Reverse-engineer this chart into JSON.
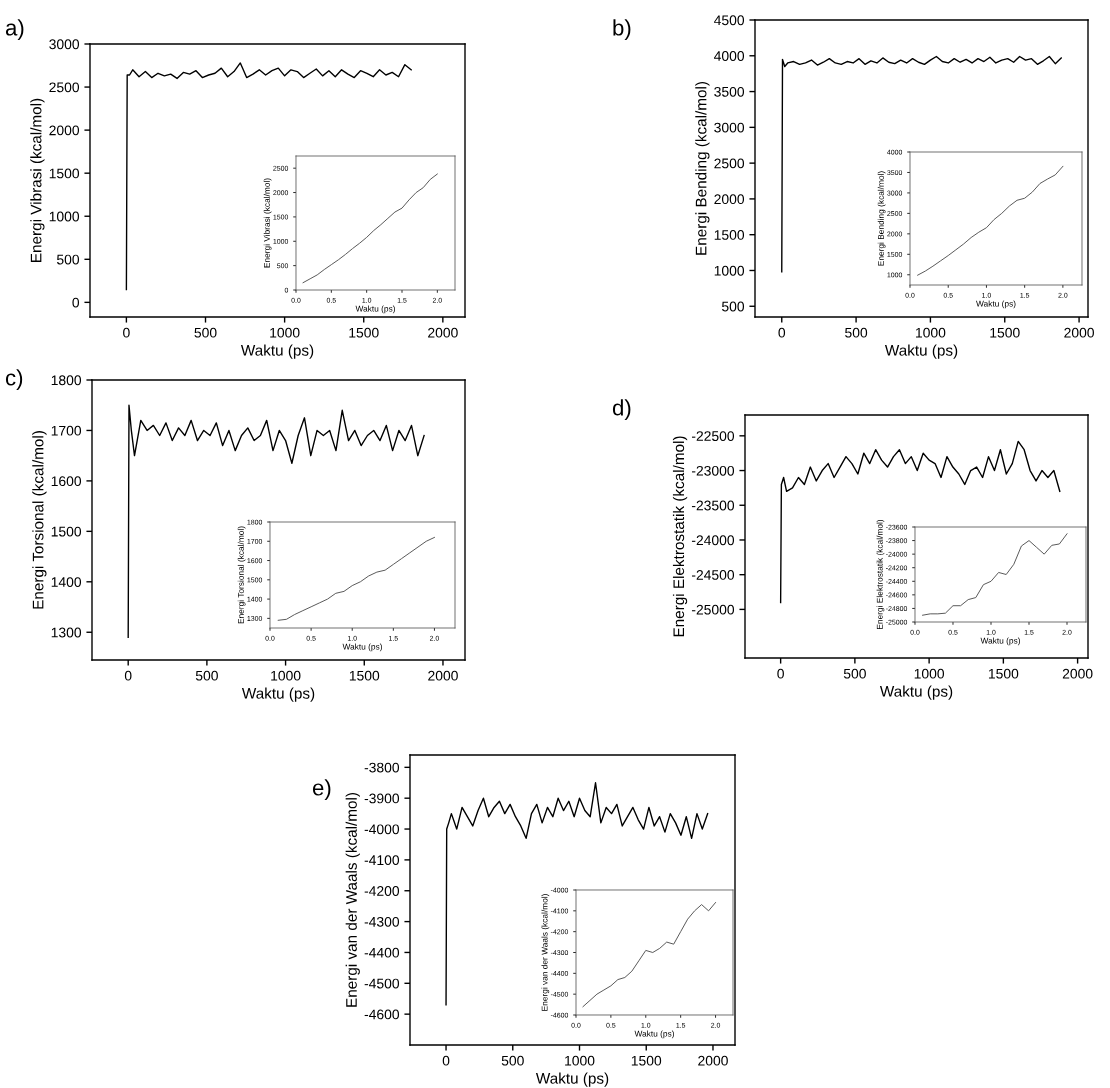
{
  "chart_data": [
    {
      "type": "line",
      "title": "a)",
      "xlabel": "Waktu (ps)",
      "ylabel": "Energi Vibrasi (kcal/mol)",
      "color": "#000000",
      "x": [
        0,
        5,
        20,
        40,
        80,
        120,
        160,
        200,
        240,
        280,
        320,
        360,
        400,
        440,
        480,
        520,
        560,
        600,
        640,
        680,
        720,
        760,
        800,
        840,
        880,
        920,
        960,
        1000,
        1040,
        1080,
        1120,
        1160,
        1200,
        1240,
        1280,
        1320,
        1360,
        1400,
        1440,
        1480,
        1520,
        1560,
        1600,
        1640,
        1680,
        1720,
        1760,
        1800
      ],
      "values": [
        150,
        2640,
        2640,
        2700,
        2620,
        2680,
        2610,
        2660,
        2630,
        2650,
        2600,
        2670,
        2650,
        2690,
        2610,
        2640,
        2660,
        2720,
        2620,
        2680,
        2780,
        2610,
        2650,
        2700,
        2640,
        2690,
        2720,
        2630,
        2700,
        2680,
        2610,
        2660,
        2710,
        2630,
        2690,
        2620,
        2700,
        2650,
        2610,
        2690,
        2660,
        2620,
        2700,
        2640,
        2670,
        2620,
        2760,
        2700
      ],
      "xlim": [
        -230,
        2140
      ],
      "ylim": [
        -170,
        3000
      ],
      "xticks": [
        0,
        500,
        1000,
        1500,
        2000
      ],
      "yticks": [
        0,
        500,
        1000,
        1500,
        2000,
        2500,
        3000
      ]
    },
    {
      "type": "line",
      "xlabel": "Waktu (ps)",
      "ylabel": "Energi Vibrasi (kcal/mol)",
      "color": "#555555",
      "x": [
        0.1,
        0.2,
        0.3,
        0.4,
        0.5,
        0.6,
        0.7,
        0.8,
        0.9,
        1.0,
        1.1,
        1.2,
        1.3,
        1.4,
        1.5,
        1.6,
        1.7,
        1.8,
        1.9,
        2.0
      ],
      "values": [
        150,
        230,
        310,
        420,
        520,
        620,
        730,
        850,
        960,
        1080,
        1220,
        1340,
        1470,
        1600,
        1680,
        1850,
        2000,
        2100,
        2270,
        2380
      ],
      "xlim": [
        0,
        2.25
      ],
      "ylim": [
        0,
        2750
      ],
      "xticks": [
        {
          "value": 0,
          "label": "0.0"
        },
        {
          "value": 0.5,
          "label": "0.5"
        },
        {
          "value": 1,
          "label": "1.0"
        },
        {
          "value": 1.5,
          "label": "1.5"
        },
        {
          "value": 2,
          "label": "2.0"
        }
      ],
      "yticks": [
        0,
        500,
        1000,
        1500,
        2000,
        2500
      ]
    },
    {
      "type": "line",
      "title": "b)",
      "xlabel": "Waktu (ps)",
      "ylabel": "Energi Bending (kcal/mol)",
      "color": "#000000",
      "x": [
        0,
        5,
        20,
        40,
        80,
        120,
        160,
        200,
        240,
        280,
        320,
        360,
        400,
        440,
        480,
        520,
        560,
        600,
        640,
        680,
        720,
        760,
        800,
        840,
        880,
        920,
        960,
        1000,
        1040,
        1080,
        1120,
        1160,
        1200,
        1240,
        1280,
        1320,
        1360,
        1400,
        1440,
        1480,
        1520,
        1560,
        1600,
        1640,
        1680,
        1720,
        1760,
        1800,
        1840,
        1880
      ],
      "values": [
        980,
        3950,
        3850,
        3900,
        3920,
        3880,
        3900,
        3940,
        3870,
        3910,
        3960,
        3900,
        3880,
        3920,
        3900,
        3960,
        3880,
        3930,
        3900,
        3970,
        3910,
        3890,
        3940,
        3900,
        3960,
        3910,
        3880,
        3940,
        3990,
        3920,
        3900,
        3960,
        3910,
        3950,
        3900,
        3960,
        3920,
        3980,
        3900,
        3940,
        3960,
        3910,
        3990,
        3940,
        3960,
        3880,
        3930,
        3990,
        3890,
        3970
      ],
      "xlim": [
        -180,
        2060
      ],
      "ylim": [
        350,
        4500
      ],
      "xticks": [
        0,
        500,
        1000,
        1500,
        2000
      ],
      "yticks": [
        500,
        1000,
        1500,
        2000,
        2500,
        3000,
        3500,
        4000,
        4500
      ]
    },
    {
      "type": "line",
      "xlabel": "Waktu (ps)",
      "ylabel": "Energi Bending (kcal/mol)",
      "color": "#555555",
      "x": [
        0.1,
        0.2,
        0.3,
        0.4,
        0.5,
        0.6,
        0.7,
        0.8,
        0.9,
        1.0,
        1.1,
        1.2,
        1.3,
        1.4,
        1.5,
        1.6,
        1.7,
        1.8,
        1.9,
        2.0
      ],
      "values": [
        990,
        1090,
        1210,
        1340,
        1470,
        1610,
        1750,
        1910,
        2040,
        2150,
        2350,
        2500,
        2680,
        2820,
        2870,
        3020,
        3230,
        3340,
        3440,
        3650
      ],
      "xlim": [
        0,
        2.25
      ],
      "ylim": [
        750,
        4000
      ],
      "xticks": [
        {
          "value": 0,
          "label": "0.0"
        },
        {
          "value": 0.5,
          "label": "0.5"
        },
        {
          "value": 1,
          "label": "1.0"
        },
        {
          "value": 1.5,
          "label": "1.5"
        },
        {
          "value": 2,
          "label": "2.0"
        }
      ],
      "yticks": [
        1000,
        1500,
        2000,
        2500,
        3000,
        3500,
        4000
      ]
    },
    {
      "type": "line",
      "title": "c)",
      "xlabel": "Waktu (ps)",
      "ylabel": "Energi Torsional (kcal/mol)",
      "color": "#000000",
      "x": [
        0,
        5,
        20,
        40,
        80,
        120,
        160,
        200,
        240,
        280,
        320,
        360,
        400,
        440,
        480,
        520,
        560,
        600,
        640,
        680,
        720,
        760,
        800,
        840,
        880,
        920,
        960,
        1000,
        1040,
        1080,
        1120,
        1160,
        1200,
        1240,
        1280,
        1320,
        1360,
        1400,
        1440,
        1480,
        1520,
        1560,
        1600,
        1640,
        1680,
        1720,
        1760,
        1800,
        1840,
        1880
      ],
      "values": [
        1290,
        1750,
        1700,
        1650,
        1720,
        1700,
        1710,
        1690,
        1715,
        1680,
        1705,
        1690,
        1720,
        1680,
        1700,
        1690,
        1715,
        1670,
        1700,
        1660,
        1690,
        1705,
        1680,
        1690,
        1720,
        1660,
        1700,
        1680,
        1635,
        1690,
        1725,
        1650,
        1700,
        1690,
        1700,
        1660,
        1740,
        1680,
        1700,
        1670,
        1690,
        1700,
        1680,
        1710,
        1660,
        1700,
        1680,
        1710,
        1650,
        1690
      ],
      "xlim": [
        -230,
        2140
      ],
      "ylim": [
        1245,
        1800
      ],
      "xticks": [
        0,
        500,
        1000,
        1500,
        2000
      ],
      "yticks": [
        1300,
        1400,
        1500,
        1600,
        1700,
        1800
      ]
    },
    {
      "type": "line",
      "xlabel": "Waktu (ps)",
      "ylabel": "Energi Torsional (kcal/mol)",
      "color": "#555555",
      "x": [
        0.1,
        0.2,
        0.3,
        0.4,
        0.5,
        0.6,
        0.7,
        0.8,
        0.9,
        1.0,
        1.1,
        1.2,
        1.3,
        1.4,
        1.5,
        1.6,
        1.7,
        1.8,
        1.9,
        2.0
      ],
      "values": [
        1290,
        1295,
        1320,
        1340,
        1360,
        1380,
        1400,
        1430,
        1440,
        1470,
        1490,
        1520,
        1540,
        1550,
        1580,
        1610,
        1640,
        1670,
        1700,
        1720
      ],
      "xlim": [
        0,
        2.25
      ],
      "ylim": [
        1250,
        1800
      ],
      "xticks": [
        {
          "value": 0,
          "label": "0.0"
        },
        {
          "value": 0.5,
          "label": "0.5"
        },
        {
          "value": 1,
          "label": "1.0"
        },
        {
          "value": 1.5,
          "label": "1.5"
        },
        {
          "value": 2,
          "label": "2.0"
        }
      ],
      "yticks": [
        1300,
        1400,
        1500,
        1600,
        1700,
        1800
      ]
    },
    {
      "type": "line",
      "title": "d)",
      "xlabel": "Waktu (ps)",
      "ylabel": "Energi Elektrostatik (kcal/mol)",
      "color": "#000000",
      "x": [
        0,
        5,
        20,
        40,
        80,
        120,
        160,
        200,
        240,
        280,
        320,
        360,
        400,
        440,
        480,
        520,
        560,
        600,
        640,
        680,
        720,
        760,
        800,
        840,
        880,
        920,
        960,
        1000,
        1040,
        1080,
        1120,
        1160,
        1200,
        1240,
        1280,
        1320,
        1360,
        1400,
        1440,
        1480,
        1520,
        1560,
        1600,
        1640,
        1680,
        1720,
        1760,
        1800,
        1840,
        1880
      ],
      "values": [
        -24900,
        -23200,
        -23100,
        -23300,
        -23250,
        -23100,
        -23200,
        -22950,
        -23150,
        -23000,
        -22900,
        -23100,
        -22950,
        -22800,
        -22900,
        -23050,
        -22750,
        -22900,
        -22700,
        -22850,
        -22950,
        -22800,
        -22700,
        -22900,
        -22800,
        -23000,
        -22750,
        -22850,
        -22900,
        -23100,
        -22800,
        -22950,
        -23050,
        -23200,
        -23000,
        -22950,
        -23100,
        -22800,
        -23000,
        -22700,
        -23050,
        -22900,
        -22580,
        -22700,
        -23000,
        -23150,
        -23000,
        -23100,
        -23000,
        -23300
      ],
      "xlim": [
        -240,
        2070
      ],
      "ylim": [
        -25700,
        -22200
      ],
      "xticks": [
        0,
        500,
        1000,
        1500,
        2000
      ],
      "yticks": [
        -25000,
        -24500,
        -24000,
        -23500,
        -23000,
        -22500
      ]
    },
    {
      "type": "line",
      "xlabel": "Waktu (ps)",
      "ylabel": "Energi Elektrostatik (kcal/mol)",
      "color": "#555555",
      "x": [
        0.1,
        0.2,
        0.3,
        0.4,
        0.5,
        0.6,
        0.7,
        0.8,
        0.9,
        1.0,
        1.1,
        1.2,
        1.3,
        1.4,
        1.5,
        1.6,
        1.7,
        1.8,
        1.9,
        2.0
      ],
      "values": [
        -24900,
        -24880,
        -24880,
        -24870,
        -24760,
        -24760,
        -24670,
        -24640,
        -24450,
        -24400,
        -24270,
        -24300,
        -24150,
        -23880,
        -23800,
        -23900,
        -24000,
        -23870,
        -23850,
        -23700
      ],
      "xlim": [
        0,
        2.25
      ],
      "ylim": [
        -25000,
        -23600
      ],
      "xticks": [
        {
          "value": 0,
          "label": "0.0"
        },
        {
          "value": 0.5,
          "label": "0.5"
        },
        {
          "value": 1,
          "label": "1.0"
        },
        {
          "value": 1.5,
          "label": "1.5"
        },
        {
          "value": 2,
          "label": "2.0"
        }
      ],
      "yticks": [
        -25000,
        -24800,
        -24600,
        -24400,
        -24200,
        -24000,
        -23800,
        -23600
      ]
    },
    {
      "type": "line",
      "title": "e)",
      "xlabel": "Waktu (ps)",
      "ylabel": "Energi van der Waals (kcal/mol)",
      "color": "#000000",
      "x": [
        0,
        5,
        20,
        40,
        80,
        120,
        160,
        200,
        240,
        280,
        320,
        360,
        400,
        440,
        480,
        520,
        560,
        600,
        640,
        680,
        720,
        760,
        800,
        840,
        880,
        920,
        960,
        1000,
        1040,
        1080,
        1120,
        1160,
        1200,
        1240,
        1280,
        1320,
        1360,
        1400,
        1440,
        1480,
        1520,
        1560,
        1600,
        1640,
        1680,
        1720,
        1760,
        1800,
        1840,
        1880,
        1920,
        1960
      ],
      "values": [
        -4570,
        -4000,
        -3980,
        -3950,
        -4000,
        -3930,
        -3960,
        -3990,
        -3940,
        -3900,
        -3960,
        -3930,
        -3910,
        -3950,
        -3920,
        -3960,
        -3990,
        -4030,
        -3950,
        -3920,
        -3980,
        -3930,
        -3960,
        -3900,
        -3940,
        -3910,
        -3960,
        -3900,
        -3940,
        -3960,
        -3850,
        -3980,
        -3930,
        -3950,
        -3920,
        -3990,
        -3960,
        -3930,
        -3970,
        -4000,
        -3930,
        -3990,
        -3960,
        -4010,
        -3950,
        -3980,
        -4020,
        -3960,
        -4030,
        -3950,
        -4000,
        -3950
      ],
      "xlim": [
        -270,
        2165
      ],
      "ylim": [
        -4700,
        -3760
      ],
      "xticks": [
        0,
        500,
        1000,
        1500,
        2000
      ],
      "yticks": [
        -4600,
        -4500,
        -4400,
        -4300,
        -4200,
        -4100,
        -4000,
        -3900,
        -3800
      ]
    },
    {
      "type": "line",
      "xlabel": "Waktu (ps)",
      "ylabel": "Energi van der Waals (kcal/mol)",
      "color": "#555555",
      "x": [
        0.1,
        0.2,
        0.3,
        0.4,
        0.5,
        0.6,
        0.7,
        0.8,
        0.9,
        1.0,
        1.1,
        1.2,
        1.3,
        1.4,
        1.5,
        1.6,
        1.7,
        1.8,
        1.9,
        2.0
      ],
      "values": [
        -4560,
        -4530,
        -4500,
        -4480,
        -4460,
        -4430,
        -4420,
        -4390,
        -4340,
        -4290,
        -4300,
        -4280,
        -4250,
        -4260,
        -4200,
        -4140,
        -4100,
        -4070,
        -4100,
        -4060
      ],
      "xlim": [
        0,
        2.25
      ],
      "ylim": [
        -4600,
        -4000
      ],
      "xticks": [
        {
          "value": 0,
          "label": "0.0"
        },
        {
          "value": 0.5,
          "label": "0.5"
        },
        {
          "value": 1,
          "label": "1.0"
        },
        {
          "value": 1.5,
          "label": "1.5"
        },
        {
          "value": 2,
          "label": "2.0"
        }
      ],
      "yticks": [
        -4600,
        -4500,
        -4400,
        -4300,
        -4200,
        -4100,
        -4000
      ]
    }
  ]
}
